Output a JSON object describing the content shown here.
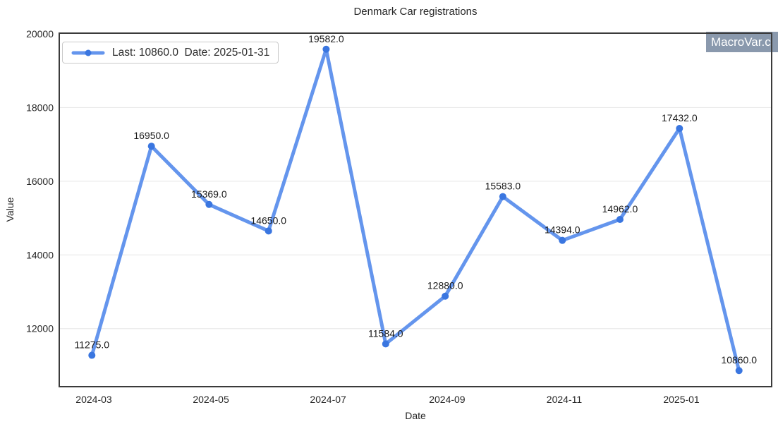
{
  "legend": {
    "label": "Last: 10860.0  Date: 2025-01-31"
  },
  "watermark": {
    "text": "MacroVar.c"
  },
  "chart_data": {
    "type": "line",
    "title": "Denmark Car registrations",
    "xlabel": "Date",
    "ylabel": "Value",
    "x": [
      "2024-02-29",
      "2024-03-31",
      "2024-04-30",
      "2024-05-31",
      "2024-06-30",
      "2024-07-31",
      "2024-08-31",
      "2024-09-30",
      "2024-10-31",
      "2024-11-30",
      "2024-12-31",
      "2025-01-31"
    ],
    "values": [
      11275,
      16950,
      15369,
      14650,
      19582,
      11584,
      12880,
      15583,
      14394,
      14962,
      17432,
      10860
    ],
    "point_labels": [
      "11275.0",
      "16950.0",
      "15369.0",
      "14650.0",
      "19582.0",
      "11584.0",
      "12880.0",
      "15583.0",
      "14394.0",
      "14962.0",
      "17432.0",
      "10860.0"
    ],
    "last_value": "10860.0",
    "last_date": "2025-01-31",
    "xticks": [
      {
        "date": "2024-03-01",
        "label": "2024-03"
      },
      {
        "date": "2024-05-01",
        "label": "2024-05"
      },
      {
        "date": "2024-07-01",
        "label": "2024-07"
      },
      {
        "date": "2024-09-01",
        "label": "2024-09"
      },
      {
        "date": "2024-11-01",
        "label": "2024-11"
      },
      {
        "date": "2025-01-01",
        "label": "2025-01"
      }
    ],
    "yticks": [
      12000,
      14000,
      16000,
      18000,
      20000
    ],
    "ylim": [
      10424,
      20018
    ],
    "xlim": [
      "2024-02-12",
      "2025-02-17"
    ],
    "grid": "horizontal",
    "legend_position": "upper-left",
    "colors": {
      "line": "#6495ED",
      "marker": "#3A76E0",
      "grid": "#e6e6e6",
      "spine": "#3b3b3b",
      "tick_text": "#262626",
      "label_text": "#1a1a1a",
      "watermark_bg": "#8a99ad",
      "watermark_text": "#ffffff"
    }
  }
}
